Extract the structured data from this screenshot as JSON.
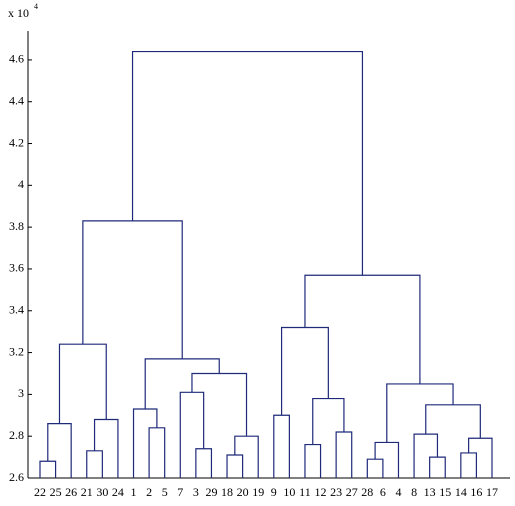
{
  "chart_data": {
    "type": "dendrogram",
    "y_multiplier": "x 10",
    "y_multiplier_exp": "4",
    "color": "#1f2a7a",
    "ylim": [
      2.6,
      4.7
    ],
    "yticks": [
      2.6,
      2.8,
      3,
      3.2,
      3.4,
      3.6,
      3.8,
      4,
      4.2,
      4.4,
      4.6
    ],
    "tree": {
      "height": 4.64,
      "children": [
        {
          "height": 3.83,
          "children": [
            {
              "height": 3.24,
              "children": [
                {
                  "height": 2.86,
                  "children": [
                    {
                      "height": 2.68,
                      "children": [
                        "22",
                        "25"
                      ]
                    },
                    "26"
                  ]
                },
                {
                  "height": 2.88,
                  "children": [
                    {
                      "height": 2.73,
                      "children": [
                        "21",
                        "30"
                      ]
                    },
                    "24"
                  ]
                }
              ]
            },
            {
              "height": 3.17,
              "children": [
                {
                  "height": 2.93,
                  "children": [
                    "1",
                    {
                      "height": 2.84,
                      "children": [
                        "2",
                        "5"
                      ]
                    }
                  ]
                },
                {
                  "height": 3.1,
                  "children": [
                    {
                      "height": 3.01,
                      "children": [
                        "7",
                        {
                          "height": 2.74,
                          "children": [
                            "3",
                            "29"
                          ]
                        }
                      ]
                    },
                    {
                      "height": 2.8,
                      "children": [
                        {
                          "height": 2.71,
                          "children": [
                            "18",
                            "20"
                          ]
                        },
                        "19"
                      ]
                    }
                  ]
                }
              ]
            }
          ]
        },
        {
          "height": 3.57,
          "children": [
            {
              "height": 3.32,
              "children": [
                {
                  "height": 2.9,
                  "children": [
                    "9",
                    "10"
                  ]
                },
                {
                  "height": 2.98,
                  "children": [
                    {
                      "height": 2.76,
                      "children": [
                        "11",
                        "12"
                      ]
                    },
                    {
                      "height": 2.82,
                      "children": [
                        "23",
                        "27"
                      ]
                    }
                  ]
                }
              ]
            },
            {
              "height": 3.05,
              "children": [
                {
                  "height": 2.77,
                  "children": [
                    {
                      "height": 2.69,
                      "children": [
                        "28",
                        "6"
                      ]
                    },
                    "4"
                  ]
                },
                {
                  "height": 2.95,
                  "children": [
                    {
                      "height": 2.81,
                      "children": [
                        "8",
                        {
                          "height": 2.7,
                          "children": [
                            "13",
                            "15"
                          ]
                        }
                      ]
                    },
                    {
                      "height": 2.79,
                      "children": [
                        {
                          "height": 2.72,
                          "children": [
                            "14",
                            "16"
                          ]
                        },
                        "17"
                      ]
                    }
                  ]
                }
              ]
            }
          ]
        }
      ]
    }
  }
}
